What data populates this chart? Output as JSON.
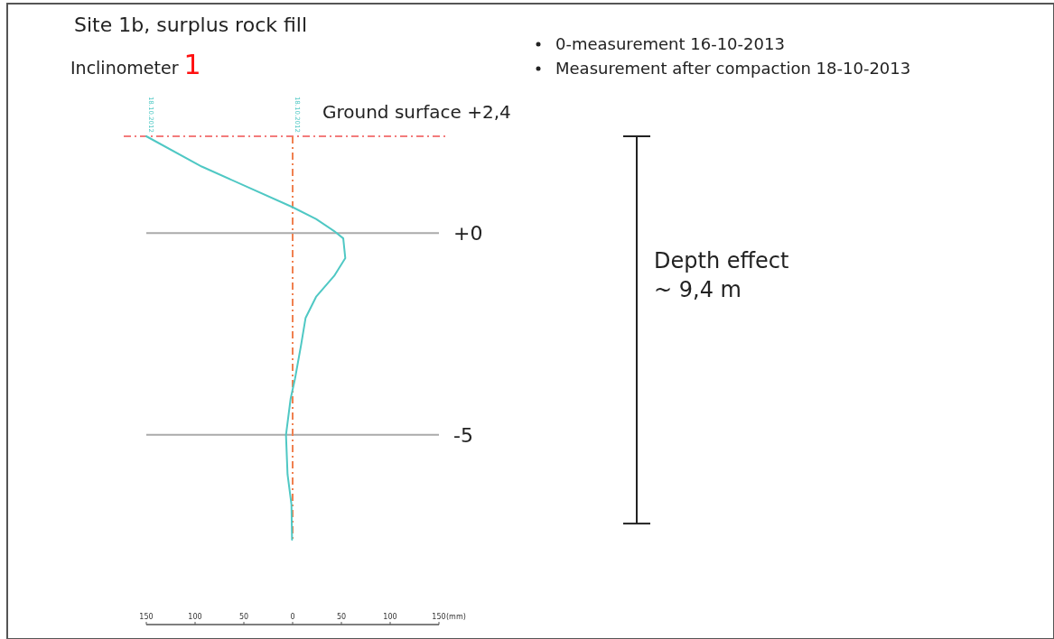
{
  "chart_data": {
    "type": "line",
    "title": "Site 1b, surplus rock fill",
    "subtitle": "Inclinometer 1",
    "xlabel": "(mm)",
    "xlim": [
      -150,
      150
    ],
    "xticks": [
      {
        "value": -150,
        "label": "150"
      },
      {
        "value": -100,
        "label": "100"
      },
      {
        "value": -50,
        "label": "50"
      },
      0,
      50,
      100,
      150
    ],
    "ylim": [
      -9.7,
      2.4
    ],
    "yticks": [
      {
        "value": 0,
        "label": "+0"
      },
      {
        "value": -5,
        "label": "-5"
      }
    ],
    "grid": "y",
    "series": [
      {
        "color": "#4fc8c4",
        "x": [
          -150,
          -93.2,
          -0.6,
          24,
          42.6,
          51.9,
          54,
          42.6,
          24,
          13.3,
          8.6,
          2.5,
          -2.1,
          -6.8,
          -5.2,
          -1.2,
          -0.6
        ],
        "values": [
          2.4,
          1.65,
          0.65,
          0.35,
          0.05,
          -0.13,
          -0.62,
          -1.06,
          -1.58,
          -2.1,
          -2.78,
          -3.6,
          -4.11,
          -5.0,
          -5.98,
          -6.72,
          -7.6
        ]
      }
    ],
    "ref_lines": [
      {
        "axis": "y",
        "value": 2.4,
        "label": "Ground surface +2,4",
        "color": "#f05050",
        "line_style": "dashed"
      },
      {
        "axis": "x",
        "value": 0,
        "color": "#f08050",
        "line_style": "dashed"
      }
    ],
    "annotations": [
      "0-measurement 16-10-2013",
      "Measurement after compaction 18-10-2013",
      {
        "text": "18.10.2012",
        "x": -150,
        "y": 2.4
      },
      {
        "text": "18.10.2012",
        "x": 0,
        "y": 2.4
      },
      "Depth effect\n~ 9,4 m"
    ]
  }
}
